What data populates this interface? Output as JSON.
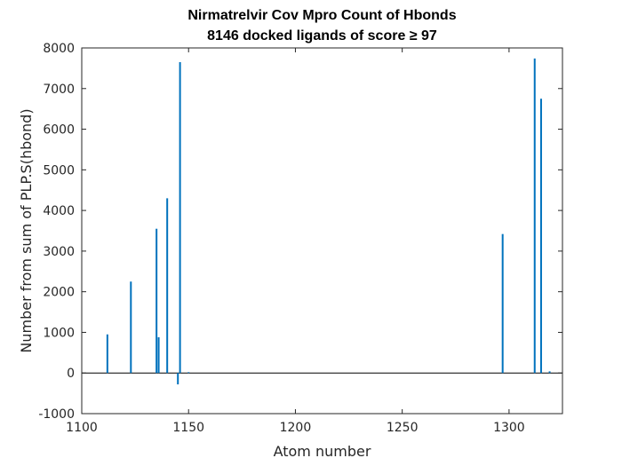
{
  "chart_data": {
    "type": "bar",
    "title_lines": [
      "Nirmatrelvir Cov   Mpro   Count of Hbonds",
      "8146 docked ligands of score ≥ 97"
    ],
    "xlabel": "Atom number",
    "ylabel": "Number from sum of PLP.S(hbond)",
    "xlim": [
      1100,
      1325
    ],
    "ylim": [
      -1000,
      8000
    ],
    "xticks": [
      1100,
      1150,
      1200,
      1250,
      1300
    ],
    "yticks": [
      -1000,
      0,
      1000,
      2000,
      3000,
      4000,
      5000,
      6000,
      7000,
      8000
    ],
    "grid": false,
    "bar_color": "#0072BD",
    "x": [
      1112,
      1123,
      1135,
      1136,
      1140,
      1145,
      1146,
      1150,
      1297,
      1312,
      1315,
      1319
    ],
    "values": [
      950,
      2250,
      3550,
      880,
      4300,
      -280,
      7650,
      20,
      3420,
      7740,
      6750,
      40
    ]
  }
}
